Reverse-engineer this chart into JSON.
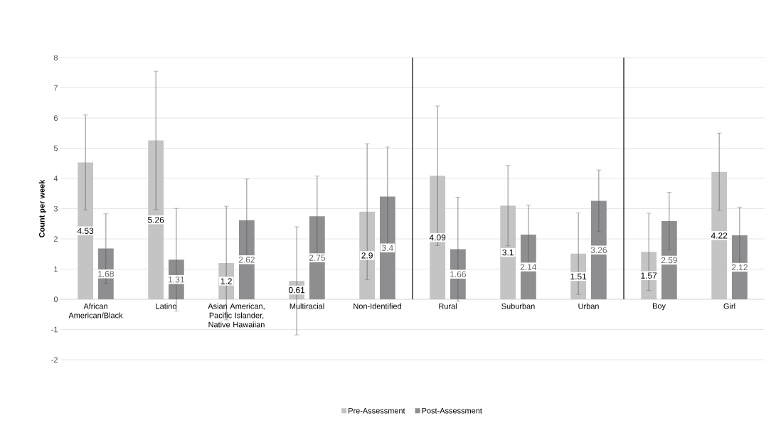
{
  "chart_data": {
    "type": "bar",
    "ylabel": "Count per week",
    "categories": [
      "African American/Black",
      "Latino",
      "Asian American, Pacific Islander, Native Hawaiian",
      "Multiracial",
      "Non-Identified",
      "Rural",
      "Suburban",
      "Urban",
      "Boy",
      "Girl"
    ],
    "series": [
      {
        "name": "Pre-Assessment",
        "color": "#c4c4c4",
        "values": [
          4.53,
          5.26,
          1.2,
          0.61,
          2.9,
          4.09,
          3.1,
          1.51,
          1.57,
          4.22
        ],
        "errors": [
          1.57,
          2.29,
          1.88,
          1.79,
          2.25,
          2.31,
          1.33,
          1.35,
          1.28,
          1.28
        ]
      },
      {
        "name": "Post-Assessment",
        "color": "#8e8e91",
        "values": [
          1.68,
          1.31,
          2.62,
          2.75,
          3.4,
          1.66,
          2.14,
          3.26,
          2.59,
          2.12
        ],
        "errors": [
          1.15,
          1.7,
          1.36,
          1.33,
          1.64,
          1.72,
          0.98,
          1.02,
          0.95,
          0.93
        ]
      }
    ],
    "ylim": [
      -2,
      8
    ],
    "yticks": [
      -2,
      -1,
      0,
      1,
      2,
      3,
      4,
      5,
      6,
      7,
      8
    ],
    "data_labels": true,
    "grid": "y",
    "legend": "bottom"
  }
}
